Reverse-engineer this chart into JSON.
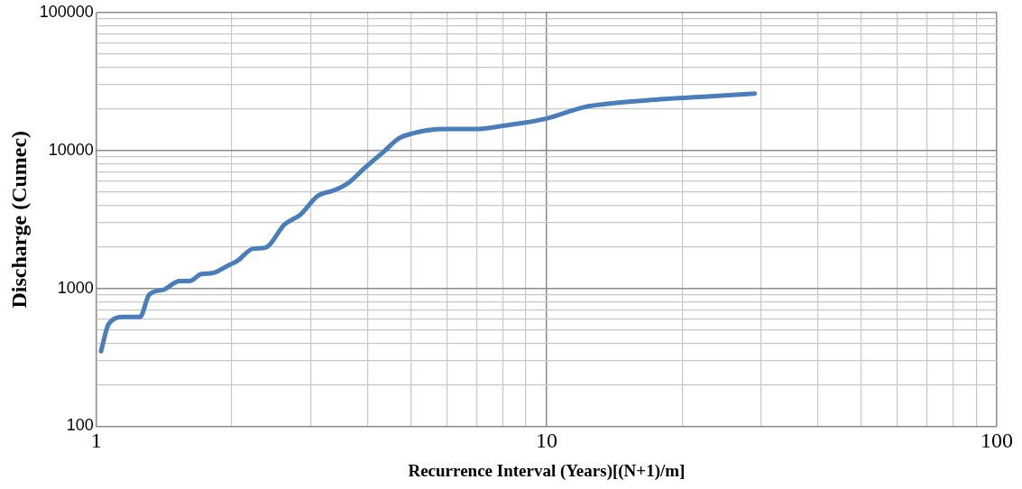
{
  "chart_data": {
    "type": "line",
    "xlabel": "Recurrence Interval (Years)[(N+1)/m]",
    "ylabel": "Discharge (Cumec)",
    "log": "xy",
    "grid": true,
    "legend": false,
    "marker": "none",
    "line_style": "solid",
    "xlim": [
      1,
      100
    ],
    "ylim": [
      100,
      100000
    ],
    "xticks": [
      1,
      {
        "value": 2,
        "label": null
      },
      {
        "value": 3,
        "label": null
      },
      {
        "value": 4,
        "label": null
      },
      {
        "value": 5,
        "label": null
      },
      {
        "value": 6,
        "label": null
      },
      {
        "value": 7,
        "label": null
      },
      {
        "value": 8,
        "label": null
      },
      {
        "value": 9,
        "label": null
      },
      10,
      {
        "value": 20,
        "label": null
      },
      {
        "value": 30,
        "label": null
      },
      {
        "value": 40,
        "label": null
      },
      {
        "value": 50,
        "label": null
      },
      {
        "value": 60,
        "label": null
      },
      {
        "value": 70,
        "label": null
      },
      {
        "value": 80,
        "label": null
      },
      {
        "value": 90,
        "label": null
      },
      100
    ],
    "yticks": [
      100,
      {
        "value": 200,
        "label": null
      },
      {
        "value": 300,
        "label": null
      },
      {
        "value": 400,
        "label": null
      },
      {
        "value": 500,
        "label": null
      },
      {
        "value": 600,
        "label": null
      },
      {
        "value": 700,
        "label": null
      },
      {
        "value": 800,
        "label": null
      },
      {
        "value": 900,
        "label": null
      },
      1000,
      {
        "value": 2000,
        "label": null
      },
      {
        "value": 3000,
        "label": null
      },
      {
        "value": 4000,
        "label": null
      },
      {
        "value": 5000,
        "label": null
      },
      {
        "value": 6000,
        "label": null
      },
      {
        "value": 7000,
        "label": null
      },
      {
        "value": 8000,
        "label": null
      },
      {
        "value": 9000,
        "label": null
      },
      10000,
      {
        "value": 20000,
        "label": null
      },
      {
        "value": 30000,
        "label": null
      },
      {
        "value": 40000,
        "label": null
      },
      {
        "value": 50000,
        "label": null
      },
      {
        "value": 60000,
        "label": null
      },
      {
        "value": 70000,
        "label": null
      },
      {
        "value": 80000,
        "label": null
      },
      {
        "value": 90000,
        "label": null
      },
      100000
    ],
    "series": [
      {
        "color": "#4a7ebb",
        "x": [
          1.024,
          1.065,
          1.15,
          1.25,
          1.31,
          1.41,
          1.53,
          1.61,
          1.71,
          1.81,
          1.98,
          2.05,
          2.23,
          2.37,
          2.62,
          2.84,
          3.1,
          3.38,
          3.64,
          3.95,
          4.36,
          4.69,
          5.04,
          5.63,
          5.97,
          6.98,
          7.99,
          9.95,
          12.1,
          14.0,
          17.8,
          22.7,
          29.0
        ],
        "values": [
          350,
          552,
          620,
          620,
          900,
          977,
          1130,
          1130,
          1270,
          1290,
          1490,
          1570,
          1940,
          1970,
          2910,
          3430,
          4680,
          5150,
          5870,
          7500,
          9890,
          12200,
          13300,
          14200,
          14300,
          14300,
          15100,
          17000,
          20600,
          22000,
          23500,
          24600,
          25900
        ]
      }
    ]
  }
}
